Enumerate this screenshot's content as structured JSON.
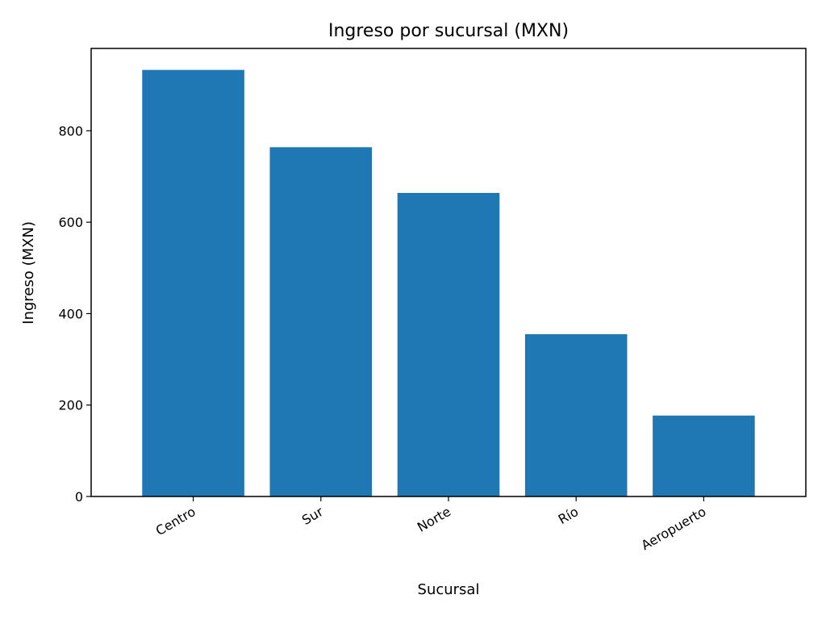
{
  "chart_data": {
    "type": "bar",
    "title": "Ingreso por sucursal (MXN)",
    "xlabel": "Sucursal",
    "ylabel": "Ingreso (MXN)",
    "categories": [
      "Centro",
      "Sur",
      "Norte",
      "Río",
      "Aeropuerto"
    ],
    "values": [
      933,
      764,
      664,
      355,
      177
    ],
    "ylim": [
      0,
      980
    ],
    "yticks": [
      0,
      200,
      400,
      600,
      800
    ],
    "grid": false,
    "bar_color": "#1f77b4",
    "x_tick_rotation_deg": 30
  }
}
